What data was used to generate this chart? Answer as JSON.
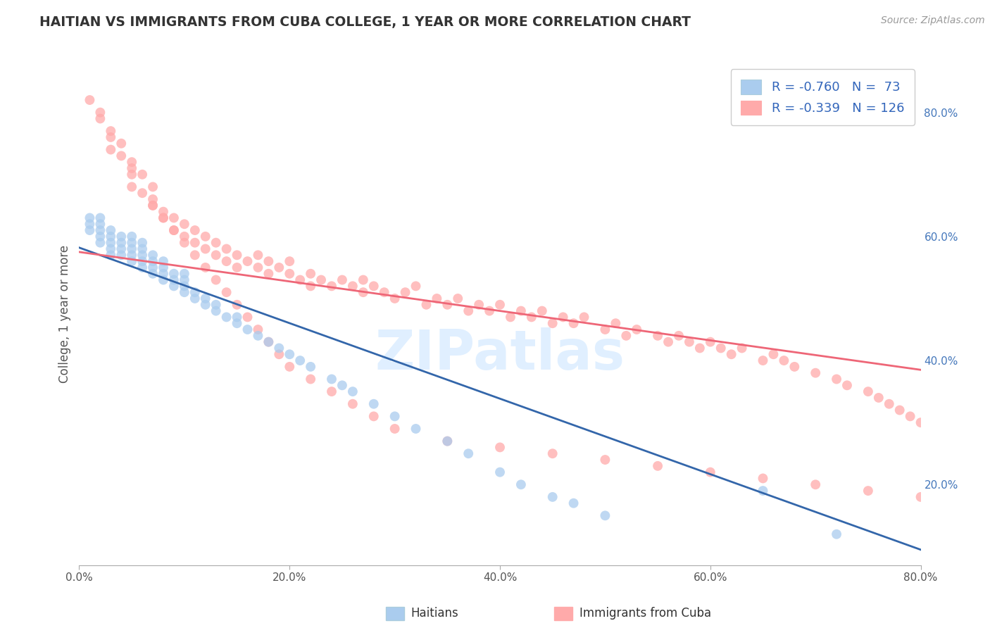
{
  "title": "HAITIAN VS IMMIGRANTS FROM CUBA COLLEGE, 1 YEAR OR MORE CORRELATION CHART",
  "source_text": "Source: ZipAtlas.com",
  "ylabel_left": "College, 1 year or more",
  "xlim": [
    0.0,
    0.8
  ],
  "ylim": [
    0.07,
    0.88
  ],
  "xtick_labels": [
    "0.0%",
    "20.0%",
    "40.0%",
    "60.0%",
    "80.0%"
  ],
  "xtick_vals": [
    0.0,
    0.2,
    0.4,
    0.6,
    0.8
  ],
  "ytick_labels_right": [
    "20.0%",
    "40.0%",
    "60.0%",
    "80.0%"
  ],
  "ytick_vals_right": [
    0.2,
    0.4,
    0.6,
    0.8
  ],
  "color_blue": "#AACCEE",
  "color_pink": "#FFAAAA",
  "color_blue_line": "#3366AA",
  "color_pink_line": "#EE6677",
  "color_blue_text": "#3366BB",
  "background_color": "#FFFFFF",
  "grid_color": "#CCCCCC",
  "title_color": "#333333",
  "watermark_color": "#DDEEFF",
  "legend_label1": "R = -0.760   N =  73",
  "legend_label2": "R = -0.339   N = 126",
  "bottom_label1": "Haitians",
  "bottom_label2": "Immigrants from Cuba",
  "blue_trend_x0": 0.0,
  "blue_trend_y0": 0.582,
  "blue_trend_x1": 0.8,
  "blue_trend_y1": 0.095,
  "pink_trend_x0": 0.0,
  "pink_trend_y0": 0.575,
  "pink_trend_x1": 0.8,
  "pink_trend_y1": 0.385,
  "haitians_x": [
    0.01,
    0.01,
    0.01,
    0.02,
    0.02,
    0.02,
    0.02,
    0.02,
    0.03,
    0.03,
    0.03,
    0.03,
    0.03,
    0.04,
    0.04,
    0.04,
    0.04,
    0.05,
    0.05,
    0.05,
    0.05,
    0.05,
    0.06,
    0.06,
    0.06,
    0.06,
    0.06,
    0.07,
    0.07,
    0.07,
    0.07,
    0.08,
    0.08,
    0.08,
    0.08,
    0.09,
    0.09,
    0.09,
    0.1,
    0.1,
    0.1,
    0.1,
    0.11,
    0.11,
    0.12,
    0.12,
    0.13,
    0.13,
    0.14,
    0.15,
    0.15,
    0.16,
    0.17,
    0.18,
    0.19,
    0.2,
    0.21,
    0.22,
    0.24,
    0.25,
    0.26,
    0.28,
    0.3,
    0.32,
    0.35,
    0.37,
    0.4,
    0.42,
    0.45,
    0.47,
    0.5,
    0.65,
    0.72
  ],
  "haitians_y": [
    0.61,
    0.62,
    0.63,
    0.59,
    0.6,
    0.61,
    0.62,
    0.63,
    0.57,
    0.58,
    0.59,
    0.6,
    0.61,
    0.57,
    0.58,
    0.59,
    0.6,
    0.56,
    0.57,
    0.58,
    0.59,
    0.6,
    0.55,
    0.56,
    0.57,
    0.58,
    0.59,
    0.54,
    0.55,
    0.56,
    0.57,
    0.53,
    0.54,
    0.55,
    0.56,
    0.52,
    0.53,
    0.54,
    0.51,
    0.52,
    0.53,
    0.54,
    0.5,
    0.51,
    0.49,
    0.5,
    0.48,
    0.49,
    0.47,
    0.46,
    0.47,
    0.45,
    0.44,
    0.43,
    0.42,
    0.41,
    0.4,
    0.39,
    0.37,
    0.36,
    0.35,
    0.33,
    0.31,
    0.29,
    0.27,
    0.25,
    0.22,
    0.2,
    0.18,
    0.17,
    0.15,
    0.19,
    0.12
  ],
  "cuba_x": [
    0.01,
    0.02,
    0.02,
    0.03,
    0.03,
    0.04,
    0.04,
    0.05,
    0.05,
    0.05,
    0.06,
    0.06,
    0.07,
    0.07,
    0.07,
    0.08,
    0.08,
    0.09,
    0.09,
    0.1,
    0.1,
    0.11,
    0.11,
    0.12,
    0.12,
    0.13,
    0.13,
    0.14,
    0.14,
    0.15,
    0.15,
    0.16,
    0.17,
    0.17,
    0.18,
    0.18,
    0.19,
    0.2,
    0.2,
    0.21,
    0.22,
    0.22,
    0.23,
    0.24,
    0.25,
    0.26,
    0.27,
    0.27,
    0.28,
    0.29,
    0.3,
    0.31,
    0.32,
    0.33,
    0.34,
    0.35,
    0.36,
    0.37,
    0.38,
    0.39,
    0.4,
    0.41,
    0.42,
    0.43,
    0.44,
    0.45,
    0.46,
    0.47,
    0.48,
    0.5,
    0.51,
    0.52,
    0.53,
    0.55,
    0.56,
    0.57,
    0.58,
    0.59,
    0.6,
    0.61,
    0.62,
    0.63,
    0.65,
    0.66,
    0.67,
    0.68,
    0.7,
    0.72,
    0.73,
    0.75,
    0.76,
    0.77,
    0.78,
    0.79,
    0.8,
    0.03,
    0.05,
    0.07,
    0.08,
    0.09,
    0.1,
    0.11,
    0.12,
    0.13,
    0.14,
    0.15,
    0.16,
    0.17,
    0.18,
    0.19,
    0.2,
    0.22,
    0.24,
    0.26,
    0.28,
    0.3,
    0.35,
    0.4,
    0.45,
    0.5,
    0.55,
    0.6,
    0.65,
    0.7,
    0.75,
    0.8
  ],
  "cuba_y": [
    0.82,
    0.79,
    0.8,
    0.77,
    0.76,
    0.75,
    0.73,
    0.72,
    0.71,
    0.68,
    0.7,
    0.67,
    0.68,
    0.66,
    0.65,
    0.64,
    0.63,
    0.63,
    0.61,
    0.62,
    0.6,
    0.61,
    0.59,
    0.6,
    0.58,
    0.59,
    0.57,
    0.58,
    0.56,
    0.57,
    0.55,
    0.56,
    0.57,
    0.55,
    0.56,
    0.54,
    0.55,
    0.54,
    0.56,
    0.53,
    0.54,
    0.52,
    0.53,
    0.52,
    0.53,
    0.52,
    0.53,
    0.51,
    0.52,
    0.51,
    0.5,
    0.51,
    0.52,
    0.49,
    0.5,
    0.49,
    0.5,
    0.48,
    0.49,
    0.48,
    0.49,
    0.47,
    0.48,
    0.47,
    0.48,
    0.46,
    0.47,
    0.46,
    0.47,
    0.45,
    0.46,
    0.44,
    0.45,
    0.44,
    0.43,
    0.44,
    0.43,
    0.42,
    0.43,
    0.42,
    0.41,
    0.42,
    0.4,
    0.41,
    0.4,
    0.39,
    0.38,
    0.37,
    0.36,
    0.35,
    0.34,
    0.33,
    0.32,
    0.31,
    0.3,
    0.74,
    0.7,
    0.65,
    0.63,
    0.61,
    0.59,
    0.57,
    0.55,
    0.53,
    0.51,
    0.49,
    0.47,
    0.45,
    0.43,
    0.41,
    0.39,
    0.37,
    0.35,
    0.33,
    0.31,
    0.29,
    0.27,
    0.26,
    0.25,
    0.24,
    0.23,
    0.22,
    0.21,
    0.2,
    0.19,
    0.18
  ]
}
